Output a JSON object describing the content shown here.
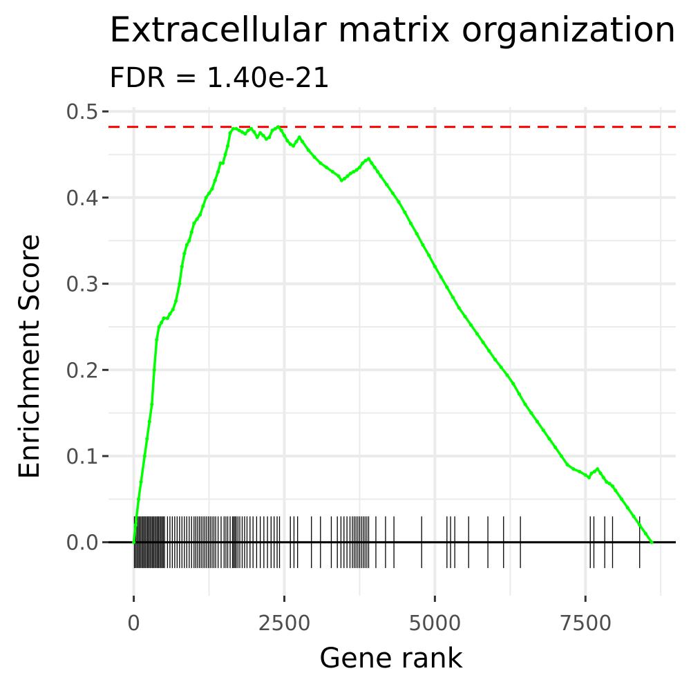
{
  "chart_data": {
    "type": "line",
    "title": "Extracellular matrix organization",
    "subtitle": "FDR = 1.40e-21",
    "xlabel": "Gene rank",
    "ylabel": "Enrichment Score",
    "xlim": [
      -420,
      9000
    ],
    "ylim": [
      -0.062,
      0.505
    ],
    "x_ticks": [
      0,
      2500,
      5000,
      7500
    ],
    "x_tick_labels": [
      "0",
      "2500",
      "5000",
      "7500"
    ],
    "y_ticks": [
      0.0,
      0.1,
      0.2,
      0.3,
      0.4,
      0.5
    ],
    "y_tick_labels": [
      "0.0",
      "0.1",
      "0.2",
      "0.3",
      "0.4",
      "0.5"
    ],
    "grid": true,
    "max_es": 0.482,
    "colors": {
      "curve": "#00ff00",
      "max_line": "#ff0000",
      "rug": "#000000",
      "grid": "#ebebeb"
    },
    "series": [
      {
        "x": [
          0,
          30,
          80,
          120,
          180,
          220,
          260,
          300,
          340,
          380,
          420,
          460,
          500,
          560,
          600,
          650,
          700,
          760,
          800,
          840,
          880,
          920,
          960,
          1000,
          1050,
          1100,
          1150,
          1200,
          1250,
          1300,
          1350,
          1400,
          1440,
          1480,
          1520,
          1560,
          1600,
          1650,
          1700,
          1750,
          1800,
          1850,
          1900,
          1950,
          2000,
          2050,
          2100,
          2150,
          2200,
          2250,
          2300,
          2350,
          2400,
          2450,
          2500,
          2550,
          2600,
          2650,
          2700,
          2750,
          2800,
          2900,
          3000,
          3100,
          3200,
          3300,
          3400,
          3450,
          3500,
          3550,
          3600,
          3650,
          3700,
          3750,
          3800,
          3850,
          3900,
          3950,
          4000,
          4050,
          4100,
          4200,
          4300,
          4400,
          4500,
          4600,
          4700,
          4800,
          4900,
          5000,
          5100,
          5200,
          5300,
          5400,
          5500,
          5600,
          5700,
          5800,
          5900,
          6000,
          6100,
          6200,
          6300,
          6400,
          6500,
          6600,
          6700,
          6800,
          6900,
          7000,
          7100,
          7200,
          7300,
          7400,
          7500,
          7560,
          7600,
          7650,
          7700,
          7750,
          7800,
          7850,
          7900,
          7950,
          8000,
          8100,
          8200,
          8300,
          8400,
          8500,
          8600
        ],
        "y": [
          0.0,
          0.02,
          0.05,
          0.07,
          0.1,
          0.12,
          0.14,
          0.16,
          0.2,
          0.235,
          0.25,
          0.255,
          0.26,
          0.26,
          0.265,
          0.27,
          0.28,
          0.3,
          0.32,
          0.335,
          0.345,
          0.35,
          0.36,
          0.37,
          0.375,
          0.38,
          0.39,
          0.4,
          0.405,
          0.41,
          0.42,
          0.43,
          0.44,
          0.44,
          0.45,
          0.46,
          0.475,
          0.48,
          0.48,
          0.478,
          0.476,
          0.474,
          0.478,
          0.48,
          0.476,
          0.47,
          0.475,
          0.472,
          0.468,
          0.47,
          0.478,
          0.48,
          0.482,
          0.478,
          0.472,
          0.466,
          0.462,
          0.46,
          0.465,
          0.47,
          0.465,
          0.455,
          0.447,
          0.44,
          0.435,
          0.43,
          0.425,
          0.42,
          0.422,
          0.425,
          0.428,
          0.43,
          0.432,
          0.435,
          0.44,
          0.443,
          0.445,
          0.44,
          0.435,
          0.43,
          0.425,
          0.415,
          0.405,
          0.395,
          0.383,
          0.37,
          0.358,
          0.345,
          0.333,
          0.32,
          0.308,
          0.296,
          0.284,
          0.272,
          0.262,
          0.252,
          0.242,
          0.232,
          0.222,
          0.212,
          0.203,
          0.194,
          0.184,
          0.172,
          0.16,
          0.15,
          0.14,
          0.13,
          0.12,
          0.11,
          0.1,
          0.09,
          0.085,
          0.082,
          0.078,
          0.075,
          0.08,
          0.082,
          0.085,
          0.08,
          0.075,
          0.07,
          0.068,
          0.065,
          0.06,
          0.05,
          0.04,
          0.03,
          0.02,
          0.01,
          0.0
        ]
      }
    ],
    "rug_ranks": [
      10,
      30,
      50,
      70,
      90,
      110,
      130,
      150,
      170,
      190,
      210,
      230,
      250,
      270,
      290,
      310,
      330,
      350,
      370,
      390,
      410,
      430,
      450,
      470,
      490,
      510,
      560,
      600,
      640,
      680,
      720,
      760,
      800,
      840,
      880,
      920,
      960,
      1000,
      1030,
      1060,
      1090,
      1120,
      1150,
      1180,
      1210,
      1240,
      1270,
      1300,
      1330,
      1360,
      1400,
      1450,
      1500,
      1530,
      1560,
      1600,
      1640,
      1660,
      1680,
      1700,
      1730,
      1760,
      1800,
      1840,
      1880,
      1930,
      1980,
      2040,
      2100,
      2160,
      2220,
      2280,
      2330,
      2380,
      2420,
      2600,
      2660,
      2720,
      2950,
      3100,
      3280,
      3380,
      3440,
      3490,
      3540,
      3590,
      3630,
      3660,
      3690,
      3720,
      3750,
      3780,
      3810,
      3840,
      3870,
      3900,
      4020,
      4180,
      4320,
      4780,
      5200,
      5260,
      5330,
      5560,
      5880,
      6140,
      6420,
      7580,
      7640,
      7820,
      7950,
      8400
    ]
  }
}
